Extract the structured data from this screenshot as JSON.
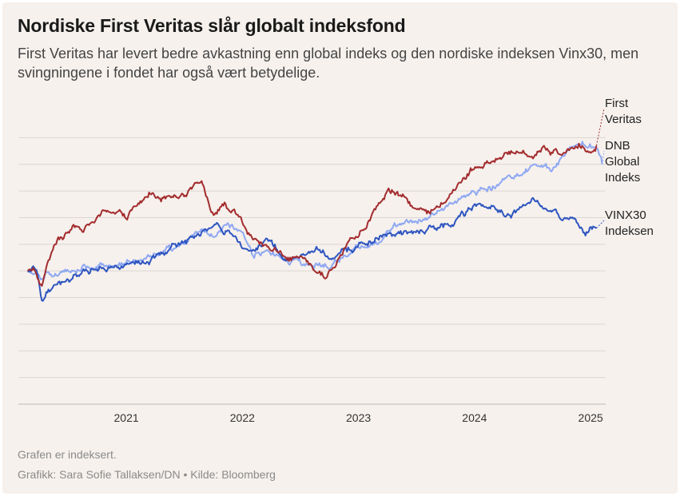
{
  "header": {
    "title": "Nordiske First Veritas slår globalt indeksfond",
    "subtitle": "First Veritas har levert bedre avkastning enn global indeks og den nordiske indeksen Vinx30, men svingningene i fondet har også vært betydelige."
  },
  "footer": {
    "note": "Grafen er indeksert.",
    "credit": "Grafikk: Sara Sofie Tallaksen/DN • Kilde: Bloomberg"
  },
  "chart_data": {
    "type": "line",
    "xlabel": "",
    "ylabel": "",
    "x_ticks": [
      "2021",
      "2022",
      "2023",
      "2024",
      "2025"
    ],
    "x_tick_values": [
      2021,
      2022,
      2023,
      2024,
      2025
    ],
    "xlim": [
      2020.07,
      2025.13
    ],
    "ylim": [
      50,
      160
    ],
    "y_gridlines": [
      50,
      60,
      70,
      80,
      90,
      100,
      110,
      120,
      130,
      140,
      150
    ],
    "y_ticks_labeled": false,
    "grid": true,
    "legend": "inline-right",
    "series": [
      {
        "name": "First Veritas",
        "label_lines": [
          "First",
          "Veritas"
        ],
        "color": "#a32c2e",
        "x": [
          2020.15,
          2020.2,
          2020.23,
          2020.27,
          2020.32,
          2020.4,
          2020.55,
          2020.7,
          2020.85,
          2021.0,
          2021.2,
          2021.35,
          2021.5,
          2021.65,
          2021.75,
          2021.85,
          2022.0,
          2022.1,
          2022.2,
          2022.35,
          2022.5,
          2022.62,
          2022.72,
          2022.8,
          2022.9,
          2023.0,
          2023.1,
          2023.25,
          2023.35,
          2023.45,
          2023.6,
          2023.75,
          2023.85,
          2024.0,
          2024.1,
          2024.25,
          2024.4,
          2024.5,
          2024.6,
          2024.75,
          2024.9,
          2024.95,
          2025.05
        ],
        "y": [
          100,
          102,
          98,
          94,
          103,
          111,
          116,
          118,
          123,
          120,
          129,
          128,
          130,
          133,
          122,
          125,
          118,
          110,
          109,
          106,
          104,
          100,
          98,
          102,
          110,
          113,
          120,
          130,
          128,
          125,
          121,
          127,
          132,
          139,
          140,
          143,
          145,
          144,
          147,
          144,
          147,
          145,
          147
        ]
      },
      {
        "name": "DNB Global Indeks",
        "label_lines": [
          "DNB",
          "Global",
          "Indeks"
        ],
        "color": "#8ea8f2",
        "x": [
          2020.15,
          2020.2,
          2020.23,
          2020.27,
          2020.32,
          2020.5,
          2020.75,
          2021.0,
          2021.2,
          2021.45,
          2021.65,
          2021.75,
          2021.85,
          2022.0,
          2022.1,
          2022.2,
          2022.4,
          2022.6,
          2022.75,
          2022.85,
          2023.0,
          2023.15,
          2023.35,
          2023.55,
          2023.75,
          2023.9,
          2024.1,
          2024.3,
          2024.5,
          2024.65,
          2024.8,
          2024.95,
          2025.05,
          2025.1
        ],
        "y": [
          100,
          101,
          98,
          96,
          99,
          100,
          102,
          104,
          106,
          110,
          116,
          113,
          116,
          114,
          106,
          108,
          104,
          103,
          102,
          104,
          108,
          110,
          117,
          119,
          123,
          127,
          131,
          134,
          140,
          138,
          144,
          147,
          146,
          140
        ]
      },
      {
        "name": "VINX30 Indeksen",
        "label_lines": [
          "VINX30",
          "Indeksen"
        ],
        "color": "#2e55c0",
        "x": [
          2020.15,
          2020.2,
          2020.23,
          2020.27,
          2020.3,
          2020.35,
          2020.5,
          2020.75,
          2021.0,
          2021.2,
          2021.45,
          2021.65,
          2021.8,
          2021.95,
          2022.05,
          2022.2,
          2022.35,
          2022.5,
          2022.65,
          2022.75,
          2022.85,
          2023.0,
          2023.2,
          2023.4,
          2023.6,
          2023.8,
          2023.9,
          2024.05,
          2024.2,
          2024.35,
          2024.5,
          2024.65,
          2024.75,
          2024.85,
          2024.95,
          2025.0,
          2025.05
        ],
        "y": [
          100,
          101,
          98,
          88,
          91,
          93,
          97,
          101,
          103,
          104,
          109,
          114,
          117,
          114,
          108,
          112,
          106,
          105,
          108,
          104,
          108,
          109,
          113,
          115,
          116,
          117,
          121,
          126,
          122,
          122,
          126,
          122,
          120,
          119,
          114,
          117,
          116
        ]
      }
    ]
  }
}
